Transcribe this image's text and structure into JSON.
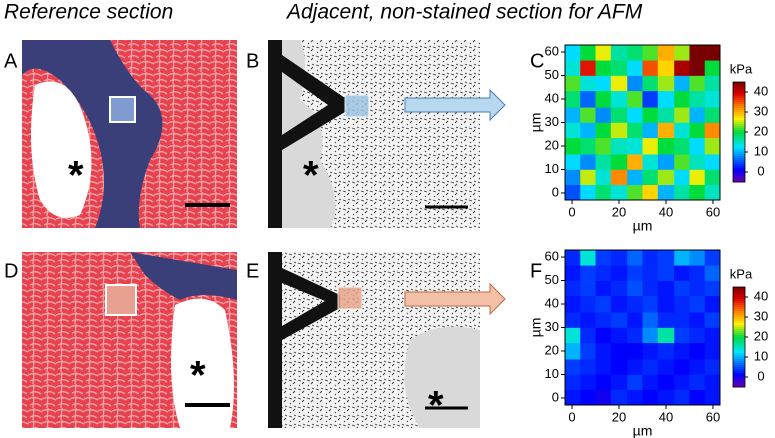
{
  "header": {
    "left": "Reference section",
    "right": "Adjacent, non-stained section for AFM"
  },
  "panel_labels": [
    "A",
    "B",
    "C",
    "D",
    "E",
    "F"
  ],
  "asterisks": [
    "*",
    "*",
    "*",
    "*"
  ],
  "chart_data": [
    {
      "type": "heatmap",
      "x": [
        0,
        7,
        13,
        20,
        27,
        33,
        40,
        47,
        53,
        60
      ],
      "y": [
        0,
        7,
        13,
        20,
        27,
        33,
        40,
        47,
        53,
        60
      ],
      "values": [
        [
          5,
          12,
          18,
          14,
          22,
          28,
          10,
          16,
          20,
          15
        ],
        [
          8,
          25,
          14,
          32,
          10,
          18,
          24,
          12,
          26,
          18
        ],
        [
          12,
          8,
          16,
          20,
          30,
          14,
          9,
          22,
          15,
          12
        ],
        [
          20,
          18,
          22,
          15,
          14,
          26,
          20,
          18,
          12,
          24
        ],
        [
          14,
          10,
          20,
          25,
          18,
          10,
          30,
          14,
          20,
          32
        ],
        [
          10,
          22,
          8,
          18,
          12,
          20,
          16,
          24,
          10,
          18
        ],
        [
          18,
          6,
          20,
          14,
          22,
          4,
          12,
          20,
          16,
          14
        ],
        [
          22,
          14,
          12,
          26,
          8,
          18,
          24,
          10,
          22,
          16
        ],
        [
          14,
          38,
          20,
          18,
          12,
          35,
          28,
          42,
          45,
          20
        ],
        [
          12,
          20,
          26,
          16,
          18,
          22,
          30,
          24,
          45,
          45
        ]
      ],
      "xlim": [
        -3,
        63
      ],
      "ylim": [
        -3,
        63
      ],
      "xticks": [
        0,
        20,
        40,
        60
      ],
      "yticks": [
        0,
        10,
        20,
        30,
        40,
        50,
        60
      ],
      "xlabel": "µm",
      "ylabel": "µm",
      "colorbar_label": "kPa",
      "clim": [
        -5,
        45
      ],
      "colorbar_ticks": [
        0,
        10,
        20,
        30,
        40
      ]
    },
    {
      "type": "heatmap",
      "x": [
        0,
        7,
        13,
        20,
        27,
        33,
        40,
        47,
        53,
        60
      ],
      "y": [
        0,
        7,
        13,
        20,
        27,
        33,
        40,
        47,
        53,
        60
      ],
      "values": [
        [
          2,
          1,
          0,
          3,
          2,
          1,
          2,
          3,
          1,
          2
        ],
        [
          3,
          2,
          1,
          2,
          4,
          2,
          1,
          2,
          3,
          2
        ],
        [
          4,
          3,
          2,
          1,
          2,
          3,
          2,
          1,
          2,
          3
        ],
        [
          10,
          4,
          2,
          1,
          1,
          2,
          3,
          2,
          1,
          2
        ],
        [
          14,
          3,
          1,
          2,
          3,
          8,
          16,
          4,
          3,
          2
        ],
        [
          3,
          2,
          3,
          4,
          2,
          6,
          3,
          3,
          2,
          4
        ],
        [
          2,
          3,
          4,
          2,
          3,
          4,
          2,
          3,
          4,
          2
        ],
        [
          3,
          4,
          2,
          3,
          5,
          3,
          2,
          4,
          3,
          4
        ],
        [
          2,
          4,
          3,
          2,
          4,
          3,
          4,
          2,
          3,
          6
        ],
        [
          3,
          14,
          4,
          3,
          6,
          3,
          4,
          10,
          8,
          4
        ]
      ],
      "xlim": [
        -3,
        63
      ],
      "ylim": [
        -3,
        63
      ],
      "xticks": [
        0,
        20,
        40,
        60
      ],
      "yticks": [
        0,
        10,
        20,
        30,
        40,
        50,
        60
      ],
      "xlabel": "µm",
      "ylabel": "µm",
      "colorbar_label": "kPa",
      "clim": [
        -5,
        45
      ],
      "colorbar_ticks": [
        0,
        10,
        20,
        30,
        40
      ]
    }
  ]
}
